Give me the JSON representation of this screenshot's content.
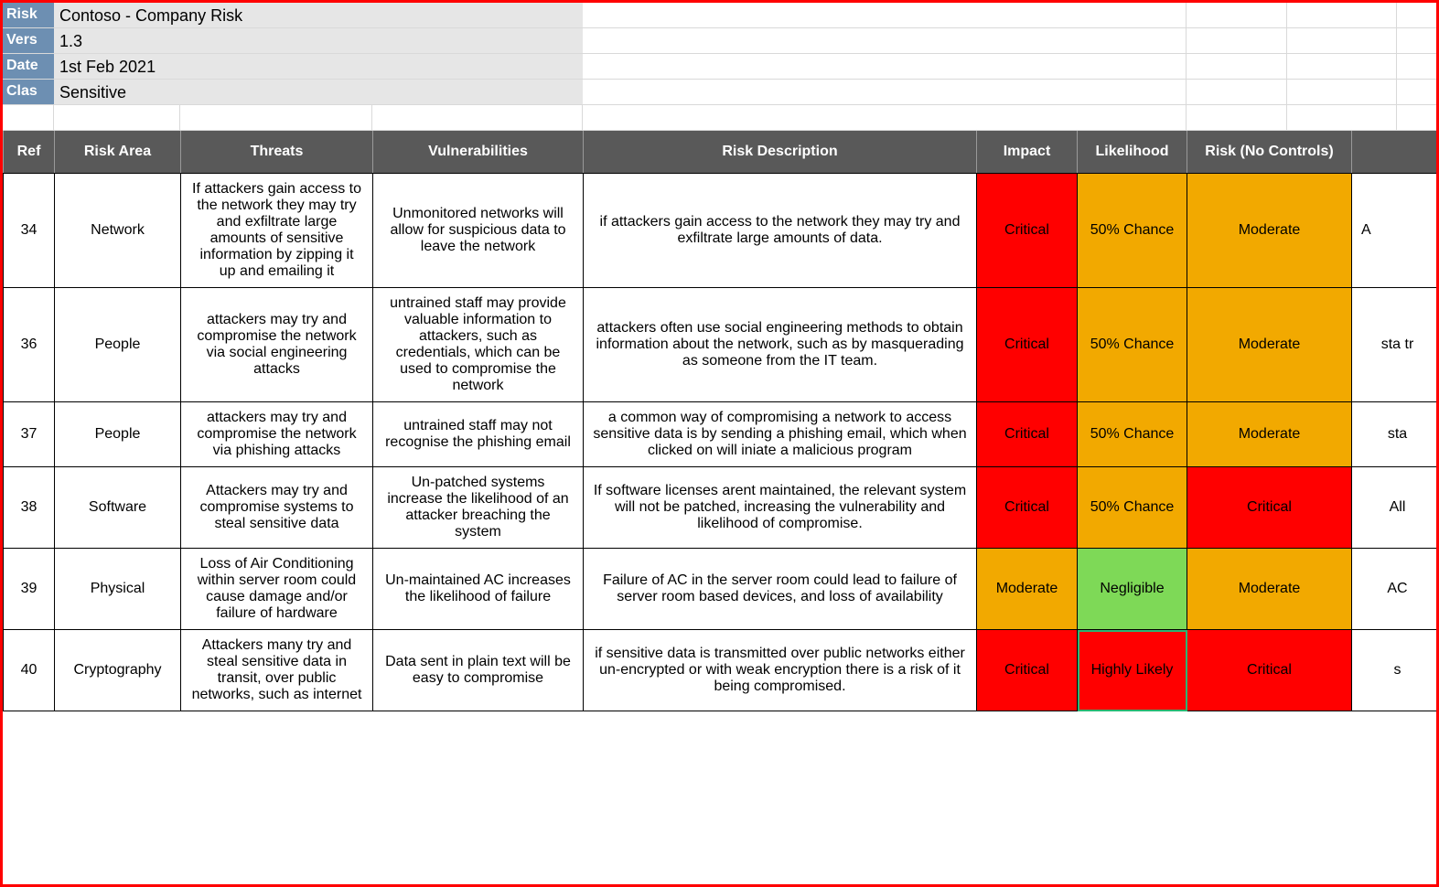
{
  "colors": {
    "outer_border": "#ff0000",
    "meta_label_bg": "#6d8fb2",
    "meta_label_fg": "#ffffff",
    "meta_value_bg": "#e6e6e6",
    "header_bg": "#595959",
    "header_fg": "#ffffff",
    "grid_line": "#d9d9d9",
    "cell_critical": "#ff0000",
    "cell_moderate": "#f2a900",
    "cell_negligible": "#7ed957",
    "active_cell_border": "#2bb673"
  },
  "meta": {
    "labels": [
      "Risk",
      "Vers",
      "Date",
      "Clas"
    ],
    "values": [
      "Contoso - Company Risk",
      "1.3",
      "1st Feb 2021",
      "Sensitive"
    ]
  },
  "columns": {
    "ref": "Ref",
    "risk_area": "Risk Area",
    "threats": "Threats",
    "vulnerabilities": "Vulnerabilities",
    "risk_description": "Risk Description",
    "impact": "Impact",
    "likelihood": "Likelihood",
    "risk_no_controls": "Risk (No Controls)",
    "extra": ""
  },
  "rows": [
    {
      "ref": "34",
      "area": "Network",
      "threats": "If attackers gain access to the network they may try and exfiltrate large amounts of sensitive information by zipping it up and emailing it",
      "threats_align": "center",
      "vuln": "Unmonitored networks will allow for suspicious data to leave the network",
      "desc": "if attackers gain access to the network they may try and exfiltrate large amounts of data.",
      "impact": {
        "text": "Critical",
        "bg": "cell_critical"
      },
      "likelihood": {
        "text": "50% Chance",
        "bg": "cell_moderate"
      },
      "risknc": {
        "text": "Moderate",
        "bg": "cell_moderate"
      },
      "extra": "A                    qua"
    },
    {
      "ref": "36",
      "area": "People",
      "threats": "attackers may try and compromise the network via social engineering attacks",
      "threats_align": "center",
      "vuln": "untrained staff may provide valuable information to attackers, such as credentials, which can be used to compromise the network",
      "desc": "attackers often use social engineering methods to obtain information about the network, such as by masquerading as someone from the IT team.",
      "impact": {
        "text": "Critical",
        "bg": "cell_critical"
      },
      "likelihood": {
        "text": "50% Chance",
        "bg": "cell_moderate"
      },
      "risknc": {
        "text": "Moderate",
        "bg": "cell_moderate"
      },
      "extra": "sta tr"
    },
    {
      "ref": "37",
      "area": "People",
      "threats": "attackers may try and compromise the network via phishing attacks",
      "threats_align": "center",
      "vuln": "untrained staff may not recognise the phishing email",
      "desc": "a common way of compromising a network to access sensitive data is by sending a phishing email, which when clicked on will iniate a malicious program",
      "impact": {
        "text": "Critical",
        "bg": "cell_critical"
      },
      "likelihood": {
        "text": "50% Chance",
        "bg": "cell_moderate"
      },
      "risknc": {
        "text": "Moderate",
        "bg": "cell_moderate"
      },
      "extra": "sta"
    },
    {
      "ref": "38",
      "area": "Software",
      "threats": "Attackers may try and compromise systems to steal sensitive data",
      "threats_align": "center",
      "vuln": "Un-patched systems increase the likelihood of an attacker breaching the system",
      "desc": "If software licenses arent maintained, the relevant system will not be patched, increasing the vulnerability and likelihood of compromise.",
      "impact": {
        "text": "Critical",
        "bg": "cell_critical"
      },
      "likelihood": {
        "text": "50% Chance",
        "bg": "cell_moderate"
      },
      "risknc": {
        "text": "Critical",
        "bg": "cell_critical"
      },
      "extra": "All"
    },
    {
      "ref": "39",
      "area": "Physical",
      "threats": "Loss of Air Conditioning within server room could cause damage and/or failure of hardware",
      "threats_align": "left",
      "vuln": "Un-maintained AC increases the likelihood of failure",
      "desc": "Failure of AC in the server room could lead to failure of server room based devices, and loss of availability",
      "impact": {
        "text": "Moderate",
        "bg": "cell_moderate"
      },
      "likelihood": {
        "text": "Negligible",
        "bg": "cell_negligible"
      },
      "risknc": {
        "text": "Moderate",
        "bg": "cell_moderate"
      },
      "extra": "AC"
    },
    {
      "ref": "40",
      "area": "Cryptography",
      "threats": "Attackers many try and steal sensitive data in transit, over public networks, such as internet",
      "threats_align": "left",
      "vuln": "Data sent in plain text will be easy to compromise",
      "desc": "if sensitive data is transmitted over public networks either un-encrypted or with weak encryption there is a risk of it being compromised.",
      "impact": {
        "text": "Critical",
        "bg": "cell_critical"
      },
      "likelihood": {
        "text": "Highly Likely",
        "bg": "cell_critical",
        "active": true
      },
      "risknc": {
        "text": "Critical",
        "bg": "cell_critical"
      },
      "extra": "s"
    }
  ]
}
